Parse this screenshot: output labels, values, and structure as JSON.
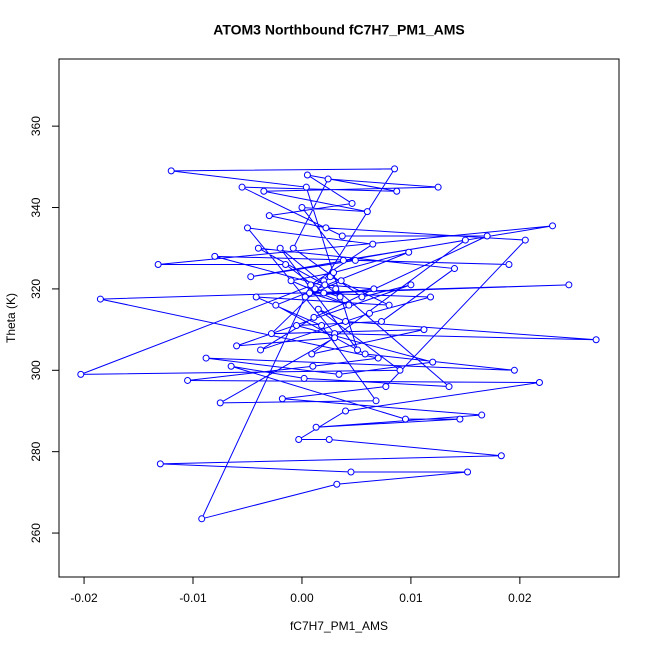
{
  "chart_data": {
    "type": "line",
    "markers": true,
    "title": "ATOM3 Northbound fC7H7_PM1_AMS",
    "x_label": "fC7H7_PM1_AMS",
    "y_label": "Theta (K)",
    "color": "#0000ff",
    "xlim": [
      -0.0223,
      0.0291
    ],
    "ylim": [
      249.2,
      376.5
    ],
    "xticks": [
      -0.02,
      -0.01,
      {
        "value": 0,
        "label": "0.00"
      },
      0.01,
      0.02
    ],
    "yticks": [
      260,
      280,
      300,
      320,
      340,
      360
    ],
    "x": [
      0.0012,
      0.0035,
      -0.002,
      0.0051,
      0.0004,
      -0.012,
      0.0085,
      0.002,
      -0.0203,
      0.009,
      0.0015,
      0.004,
      0.027,
      0.003,
      -0.005,
      0.0065,
      0.0008,
      -0.0092,
      0.0032,
      0.0152,
      0.0045,
      -0.013,
      0.0183,
      0.0025,
      -0.0003,
      0.004,
      0.0218,
      -0.0105,
      0.001,
      0.007,
      -0.0185,
      0.0245,
      0.002,
      -0.0015,
      -0.0132,
      0.023,
      0.0038,
      0.0,
      0.006,
      -0.0035,
      0.0125,
      0.0024,
      -0.0008,
      0.0055,
      0.01,
      -0.006,
      0.003,
      -0.0075,
      0.0068,
      0.0018,
      -0.0042,
      0.008,
      0.0026,
      -0.0028,
      0.0112,
      0.0009,
      0.015,
      -0.0047,
      0.0049,
      0.019,
      -0.008,
      0.0031,
      0.0135,
      0.0002,
      -0.0065,
      0.0095,
      0.0145,
      0.0013,
      0.0165,
      -0.0018,
      0.0077,
      0.0205,
      0.0022,
      -0.003,
      0.0046,
      0.0005,
      0.0087,
      -0.0055,
      0.0037,
      0.017,
      0.0011,
      -0.0038,
      0.0062,
      0.0118,
      0.0007,
      0.0043,
      -0.001,
      0.0029,
      0.0098,
      -0.0024,
      0.0058,
      0.0195,
      -0.0088,
      0.0034,
      0.012,
      -0.0005,
      0.0073,
      0.014,
      -0.004,
      0.0021,
      0.0066,
      0.0003,
      0.0036
    ],
    "values": [
      320,
      318,
      330,
      305,
      345,
      349,
      349.5,
      322,
      299,
      300,
      315,
      312,
      307.5,
      309,
      335,
      331,
      321,
      263.5,
      272,
      275,
      275,
      277,
      279,
      283,
      283,
      290,
      297,
      297.5,
      301,
      303,
      317.5,
      321,
      319,
      326,
      326,
      335.5,
      327,
      340,
      339,
      344,
      345,
      347,
      330,
      318,
      321,
      306,
      308,
      292,
      292.5,
      311,
      318,
      316,
      323,
      309,
      310,
      304,
      332,
      323,
      327,
      326,
      328,
      320,
      296,
      298,
      301,
      288,
      288,
      286,
      289,
      293,
      296,
      332,
      335,
      338,
      341,
      348,
      344,
      345,
      333,
      333,
      313,
      305,
      314,
      318,
      319,
      316,
      322,
      324,
      329,
      316,
      304,
      300,
      303,
      299,
      302,
      311,
      312,
      325,
      330,
      321,
      320,
      318,
      322
    ]
  }
}
